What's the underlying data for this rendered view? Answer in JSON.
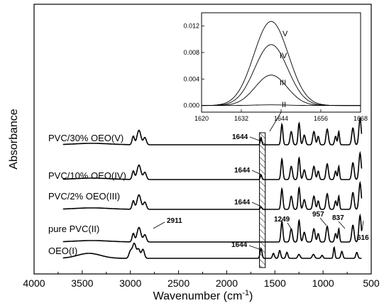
{
  "chart_data": [
    {
      "type": "line",
      "title": "",
      "xlabel": "Wavenumber (cm",
      "xlabel_sup": "-1",
      "xlabel_close": ")",
      "ylabel": "Absorbance",
      "xlim": [
        4000,
        500
      ],
      "x_reversed": true,
      "xticks": [
        4000,
        3500,
        3000,
        2500,
        2000,
        1500,
        1000,
        500
      ],
      "xtick_labels": [
        "4000",
        "3500",
        "3000",
        "2500",
        "2000",
        "1500",
        "1000",
        "500"
      ],
      "y_tick_labels_shown": false,
      "highlight_band": {
        "x": [
          1660,
          1600
        ],
        "pattern": "hatched"
      },
      "series": [
        {
          "name": "PVC/30% OEO(V)"
        },
        {
          "name": "PVC/10% OEO(IV)"
        },
        {
          "name": "PVC/2% OEO(III)"
        },
        {
          "name": "pure PVC(II)"
        },
        {
          "name": "OEO(I)"
        }
      ],
      "annotations": [
        {
          "text": "1644",
          "series": "PVC/30% OEO(V)"
        },
        {
          "text": "1644",
          "series": "PVC/10% OEO(IV)"
        },
        {
          "text": "1644",
          "series": "PVC/2% OEO(III)"
        },
        {
          "text": "2911",
          "series": "pure PVC(II)"
        },
        {
          "text": "1249",
          "series": "pure PVC(II)"
        },
        {
          "text": "957",
          "series": "pure PVC(II)"
        },
        {
          "text": "837",
          "series": "pure PVC(II)"
        },
        {
          "text": "616",
          "series": "pure PVC(II)"
        },
        {
          "text": "1644",
          "series": "OEO(I)"
        }
      ]
    },
    {
      "type": "line",
      "title": "",
      "xlabel": "",
      "ylabel": "",
      "xlim": [
        1620,
        1668
      ],
      "ylim": [
        -0.001,
        0.014
      ],
      "xticks": [
        1620,
        1632,
        1644,
        1656,
        1668
      ],
      "yticks": [
        0.0,
        0.004,
        0.008,
        0.012
      ],
      "ytick_labels": [
        "0.000",
        "0.004",
        "0.008",
        "0.012"
      ],
      "curve_labels": [
        "V",
        "IV",
        "III",
        "II"
      ],
      "curves": [
        {
          "label": "V",
          "center": 1641,
          "peak": 0.0127,
          "width": 5.2
        },
        {
          "label": "IV",
          "center": 1641,
          "peak": 0.0092,
          "width": 5.0
        },
        {
          "label": "III",
          "center": 1641,
          "peak": 0.0046,
          "width": 4.8
        },
        {
          "label": "II",
          "center": 1641,
          "peak": 0.0001,
          "width": 5.0
        }
      ]
    }
  ]
}
